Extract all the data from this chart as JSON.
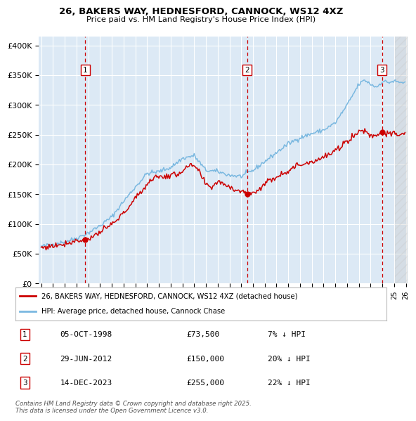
{
  "title1": "26, BAKERS WAY, HEDNESFORD, CANNOCK, WS12 4XZ",
  "title2": "Price paid vs. HM Land Registry's House Price Index (HPI)",
  "ylabel_ticks": [
    "£0",
    "£50K",
    "£100K",
    "£150K",
    "£200K",
    "£250K",
    "£300K",
    "£350K",
    "£400K"
  ],
  "ytick_vals": [
    0,
    50000,
    100000,
    150000,
    200000,
    250000,
    300000,
    350000,
    400000
  ],
  "ylim": [
    0,
    415000
  ],
  "plot_bg": "#dce9f5",
  "grid_color": "#ffffff",
  "hpi_color": "#7ab8e0",
  "price_color": "#cc0000",
  "legend_label_price": "26, BAKERS WAY, HEDNESFORD, CANNOCK, WS12 4XZ (detached house)",
  "legend_label_hpi": "HPI: Average price, detached house, Cannock Chase",
  "table_rows": [
    [
      "1",
      "05-OCT-1998",
      "£73,500",
      "7% ↓ HPI"
    ],
    [
      "2",
      "29-JUN-2012",
      "£150,000",
      "20% ↓ HPI"
    ],
    [
      "3",
      "14-DEC-2023",
      "£255,000",
      "22% ↓ HPI"
    ]
  ],
  "footnote": "Contains HM Land Registry data © Crown copyright and database right 2025.\nThis data is licensed under the Open Government Licence v3.0.",
  "xstart_year": 1995,
  "xend_year": 2026,
  "sale_years": [
    1998.75,
    2012.5,
    2023.96
  ],
  "sale_prices": [
    73500,
    150000,
    255000
  ],
  "sale_labels": [
    "1",
    "2",
    "3"
  ],
  "hpi_anchors_x": [
    1995.0,
    1996.0,
    1997.0,
    1998.0,
    1999.0,
    2000.0,
    2001.0,
    2002.0,
    2003.0,
    2004.0,
    2005.0,
    2006.0,
    2007.0,
    2008.0,
    2009.0,
    2010.0,
    2011.0,
    2012.0,
    2013.0,
    2014.0,
    2015.0,
    2016.0,
    2017.0,
    2018.0,
    2019.0,
    2020.0,
    2021.0,
    2022.0,
    2022.5,
    2023.0,
    2023.5,
    2024.0,
    2024.5,
    2025.0,
    2025.5
  ],
  "hpi_anchors_y": [
    62000,
    66000,
    70000,
    76000,
    85000,
    97000,
    112000,
    138000,
    162000,
    185000,
    188000,
    195000,
    210000,
    215000,
    190000,
    188000,
    182000,
    180000,
    190000,
    205000,
    220000,
    235000,
    245000,
    252000,
    258000,
    270000,
    300000,
    335000,
    342000,
    335000,
    330000,
    340000,
    338000,
    340000,
    338000
  ],
  "price_anchors_x": [
    1995.0,
    1996.0,
    1997.0,
    1998.0,
    1998.75,
    1999.5,
    2000.5,
    2001.5,
    2002.5,
    2003.5,
    2004.5,
    2005.5,
    2006.5,
    2007.5,
    2008.0,
    2008.5,
    2009.0,
    2009.5,
    2010.0,
    2010.5,
    2011.0,
    2011.5,
    2012.0,
    2012.5,
    2013.0,
    2013.5,
    2014.0,
    2015.0,
    2016.0,
    2017.0,
    2018.0,
    2019.0,
    2020.0,
    2021.0,
    2022.0,
    2022.5,
    2023.0,
    2023.5,
    2023.96,
    2024.3,
    2024.7,
    2025.0,
    2025.5
  ],
  "price_anchors_y": [
    60000,
    63000,
    67000,
    72000,
    73500,
    80000,
    92000,
    107000,
    130000,
    155000,
    178000,
    180000,
    183000,
    196000,
    198000,
    185000,
    165000,
    162000,
    172000,
    168000,
    163000,
    158000,
    155000,
    150000,
    152000,
    158000,
    168000,
    180000,
    190000,
    200000,
    205000,
    212000,
    222000,
    240000,
    255000,
    258000,
    248000,
    250000,
    255000,
    252000,
    250000,
    252000,
    250000
  ]
}
